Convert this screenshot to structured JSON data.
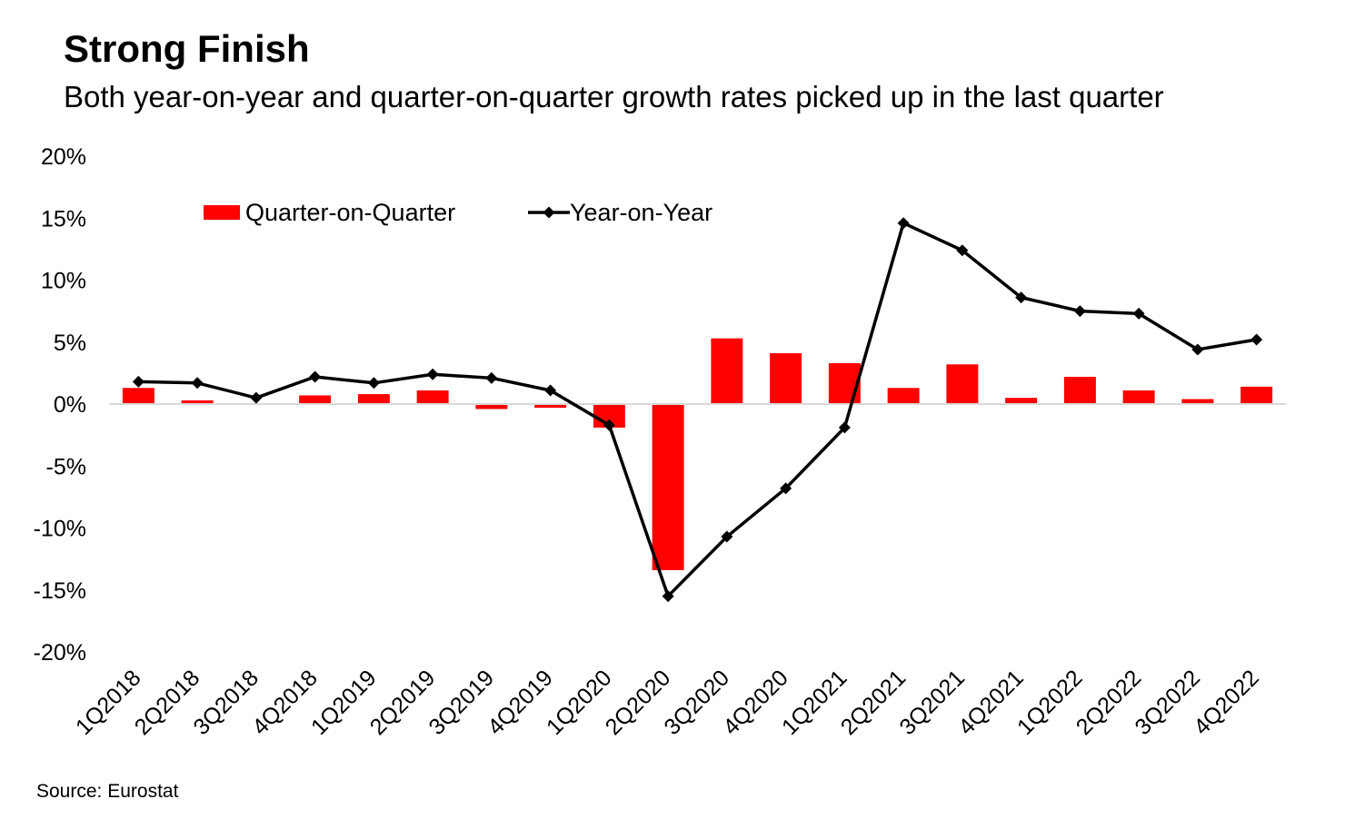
{
  "title": "Strong Finish",
  "subtitle": "Both year-on-year and quarter-on-quarter growth rates picked up in the last quarter",
  "source": "Source: Eurostat",
  "colors": {
    "bar": "#ff0000",
    "line": "#000000",
    "axis": "#d9d9d9"
  },
  "chart_data": {
    "type": "bar",
    "categories": [
      "1Q2018",
      "2Q2018",
      "3Q2018",
      "4Q2018",
      "1Q2019",
      "2Q2019",
      "3Q2019",
      "4Q2019",
      "1Q2020",
      "2Q2020",
      "3Q2020",
      "4Q2020",
      "1Q2021",
      "2Q2021",
      "3Q2021",
      "4Q2021",
      "1Q2022",
      "2Q2022",
      "3Q2022",
      "4Q2022"
    ],
    "series": [
      {
        "name": "Quarter-on-Quarter",
        "type": "bar",
        "values": [
          1.3,
          0.3,
          0.0,
          0.7,
          0.8,
          1.1,
          -0.4,
          -0.3,
          -1.9,
          -13.4,
          5.3,
          4.1,
          3.3,
          1.3,
          3.2,
          0.5,
          2.2,
          1.1,
          0.4,
          1.4
        ]
      },
      {
        "name": "Year-on-Year",
        "type": "line",
        "values": [
          1.8,
          1.7,
          0.5,
          2.2,
          1.7,
          2.4,
          2.1,
          1.1,
          -1.7,
          -15.5,
          -10.7,
          -6.8,
          -1.9,
          14.6,
          12.4,
          8.6,
          7.5,
          7.3,
          4.4,
          5.2
        ]
      }
    ],
    "ylim": [
      -20,
      20
    ],
    "yticks": [
      "20%",
      "15%",
      "10%",
      "5%",
      "0%",
      "-5%",
      "-10%",
      "-15%",
      "-20%"
    ],
    "ytick_values": [
      20,
      15,
      10,
      5,
      0,
      -5,
      -10,
      -15,
      -20
    ],
    "legend_position": "top-left",
    "grid": false
  }
}
